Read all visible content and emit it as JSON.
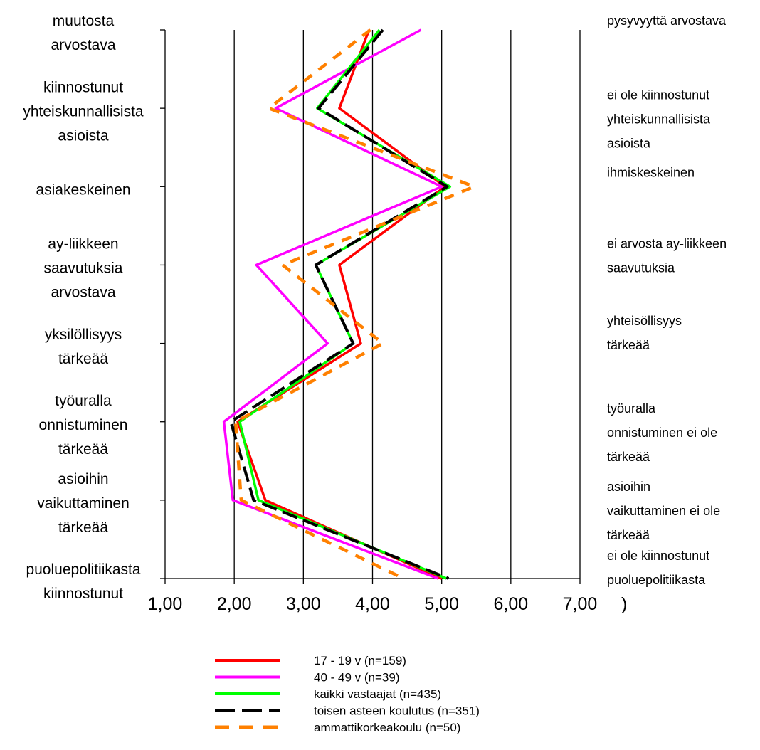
{
  "chart_data": {
    "type": "line",
    "orientation": "horizontal-profile",
    "x_ticks": [
      "1,00",
      "2,00",
      "3,00",
      "4,00",
      "5,00",
      "6,00",
      "7,00"
    ],
    "xlim": [
      1,
      7
    ],
    "stray_mark": ")",
    "grid": true,
    "left_labels": [
      [
        "muutosta",
        "arvostava"
      ],
      [
        "kiinnostunut",
        "yhteiskunnallisista",
        "asioista"
      ],
      [
        "asiakeskeinen"
      ],
      [
        "ay-liikkeen",
        "saavutuksia",
        "arvostava"
      ],
      [
        "yksilöllisyys",
        "tärkeää"
      ],
      [
        "työuralla",
        "onnistuminen",
        "tärkeää"
      ],
      [
        "asioihin",
        "vaikuttaminen",
        "tärkeää"
      ],
      [
        "puoluepolitiikasta",
        "kiinnostunut"
      ]
    ],
    "right_labels": [
      [
        "pysyvyyttä arvostava"
      ],
      [
        "ei ole kiinnostunut",
        "yhteiskunnallisista",
        "asioista"
      ],
      [
        "ihmiskeskeinen"
      ],
      [
        "ei arvosta ay-liikkeen",
        "saavutuksia"
      ],
      [
        "yhteisöllisyys",
        "tärkeää"
      ],
      [
        "työuralla",
        "onnistuminen ei ole",
        "tärkeää"
      ],
      [
        "asioihin",
        "vaikuttaminen ei ole",
        "tärkeää"
      ],
      [
        "ei ole kiinnostunut",
        "puoluepolitiikasta"
      ]
    ],
    "series": [
      {
        "name": "17 - 19 v (n=159)",
        "color": "#ff0000",
        "style": "solid",
        "values": [
          3.95,
          3.52,
          5.05,
          3.52,
          3.83,
          2.05,
          2.45,
          5.0
        ]
      },
      {
        "name": "40 - 49 v (n=39)",
        "color": "#ff00ff",
        "style": "solid",
        "values": [
          4.7,
          2.6,
          5.0,
          2.32,
          3.35,
          1.85,
          1.98,
          4.95
        ]
      },
      {
        "name": "kaikki vastaajat (n=435)",
        "color": "#00ff00",
        "style": "solid",
        "values": [
          4.1,
          3.2,
          5.12,
          3.18,
          3.72,
          2.08,
          2.35,
          5.07
        ]
      },
      {
        "name": "toisen asteen koulutus (n=351)",
        "color": "#000000",
        "style": "dash",
        "values": [
          4.15,
          3.22,
          5.08,
          3.18,
          3.72,
          1.95,
          2.28,
          5.1
        ]
      },
      {
        "name": "ammattikorkeakoulu (n=50)",
        "color": "#ff8000",
        "style": "dot",
        "values": [
          3.97,
          2.5,
          5.47,
          2.7,
          4.15,
          2.02,
          2.1,
          4.45
        ]
      }
    ]
  }
}
